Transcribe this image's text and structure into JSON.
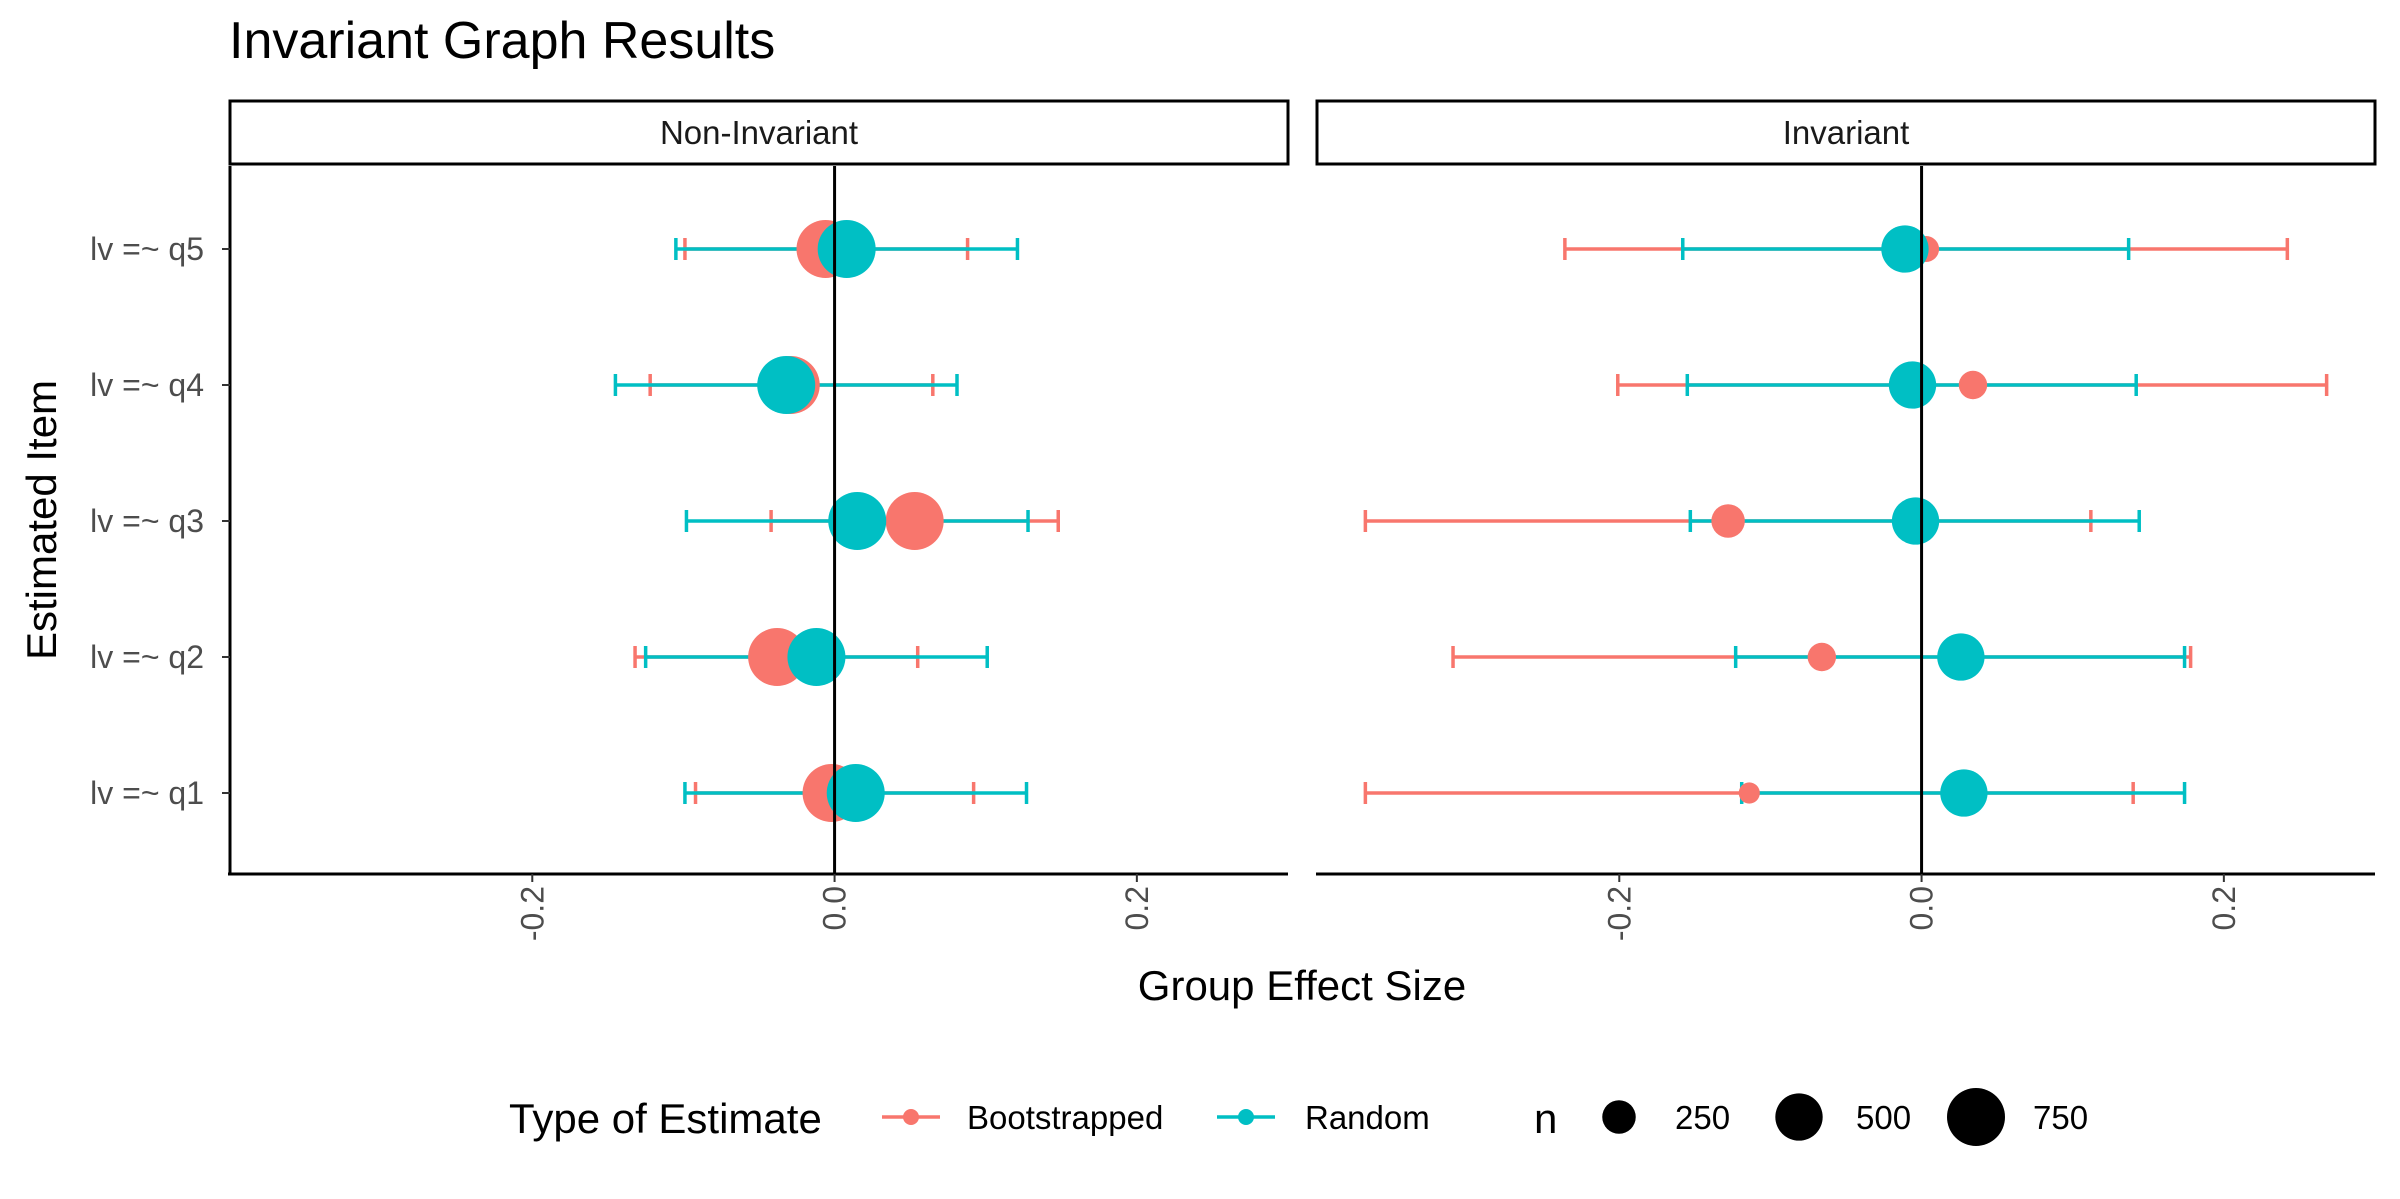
{
  "chart_data": {
    "type": "scatter",
    "subtype": "faceted dot-and-errorbar (forest) plot",
    "title": "Invariant Graph Results",
    "xlabel": "Group Effect Size",
    "ylabel": "Estimated Item",
    "xlim": [
      -0.4,
      0.3
    ],
    "x_ticks": [
      -0.2,
      0.0,
      0.2
    ],
    "x_tick_labels": [
      "-0.2",
      "0.0",
      "0.2"
    ],
    "categories": [
      "lv =~ q1",
      "lv =~ q2",
      "lv =~ q3",
      "lv =~ q4",
      "lv =~ q5"
    ],
    "grid": false,
    "zero_line": 0,
    "legend": {
      "position": "bottom",
      "color_title": "Type of Estimate",
      "color_entries": [
        {
          "name": "Bootstrapped",
          "color": "#F8766D"
        },
        {
          "name": "Random",
          "color": "#00BFC4"
        }
      ],
      "size_title": "n",
      "size_entries": [
        {
          "label": "250",
          "value": 250
        },
        {
          "label": "500",
          "value": 500
        },
        {
          "label": "750",
          "value": 750
        }
      ]
    },
    "facets": [
      {
        "label": "Non-Invariant",
        "series": [
          {
            "name": "Bootstrapped",
            "color": "#F8766D",
            "points": [
              {
                "item": "lv =~ q1",
                "estimate": -0.002,
                "lower": -0.092,
                "upper": 0.092,
                "n": 750
              },
              {
                "item": "lv =~ q2",
                "estimate": -0.038,
                "lower": -0.132,
                "upper": 0.055,
                "n": 750
              },
              {
                "item": "lv =~ q3",
                "estimate": 0.053,
                "lower": -0.042,
                "upper": 0.148,
                "n": 750
              },
              {
                "item": "lv =~ q4",
                "estimate": -0.029,
                "lower": -0.122,
                "upper": 0.065,
                "n": 750
              },
              {
                "item": "lv =~ q5",
                "estimate": -0.006,
                "lower": -0.099,
                "upper": 0.088,
                "n": 750
              }
            ]
          },
          {
            "name": "Random",
            "color": "#00BFC4",
            "points": [
              {
                "item": "lv =~ q1",
                "estimate": 0.014,
                "lower": -0.099,
                "upper": 0.127,
                "n": 750
              },
              {
                "item": "lv =~ q2",
                "estimate": -0.012,
                "lower": -0.125,
                "upper": 0.101,
                "n": 750
              },
              {
                "item": "lv =~ q3",
                "estimate": 0.015,
                "lower": -0.098,
                "upper": 0.128,
                "n": 750
              },
              {
                "item": "lv =~ q4",
                "estimate": -0.032,
                "lower": -0.145,
                "upper": 0.081,
                "n": 750
              },
              {
                "item": "lv =~ q5",
                "estimate": 0.008,
                "lower": -0.105,
                "upper": 0.121,
                "n": 750
              }
            ]
          }
        ]
      },
      {
        "label": "Invariant",
        "series": [
          {
            "name": "Bootstrapped",
            "color": "#F8766D",
            "points": [
              {
                "item": "lv =~ q1",
                "estimate": -0.114,
                "lower": -0.368,
                "upper": 0.14,
                "n": 100
              },
              {
                "item": "lv =~ q2",
                "estimate": -0.066,
                "lower": -0.31,
                "upper": 0.178,
                "n": 180
              },
              {
                "item": "lv =~ q3",
                "estimate": -0.128,
                "lower": -0.368,
                "upper": 0.112,
                "n": 250
              },
              {
                "item": "lv =~ q4",
                "estimate": 0.034,
                "lower": -0.201,
                "upper": 0.268,
                "n": 180
              },
              {
                "item": "lv =~ q5",
                "estimate": 0.003,
                "lower": -0.236,
                "upper": 0.242,
                "n": 150
              }
            ]
          },
          {
            "name": "Random",
            "color": "#00BFC4",
            "points": [
              {
                "item": "lv =~ q1",
                "estimate": 0.028,
                "lower": -0.119,
                "upper": 0.174,
                "n": 500
              },
              {
                "item": "lv =~ q2",
                "estimate": 0.026,
                "lower": -0.123,
                "upper": 0.174,
                "n": 500
              },
              {
                "item": "lv =~ q3",
                "estimate": -0.004,
                "lower": -0.153,
                "upper": 0.144,
                "n": 500
              },
              {
                "item": "lv =~ q4",
                "estimate": -0.006,
                "lower": -0.155,
                "upper": 0.142,
                "n": 500
              },
              {
                "item": "lv =~ q5",
                "estimate": -0.011,
                "lower": -0.158,
                "upper": 0.137,
                "n": 500
              }
            ]
          }
        ]
      }
    ]
  }
}
